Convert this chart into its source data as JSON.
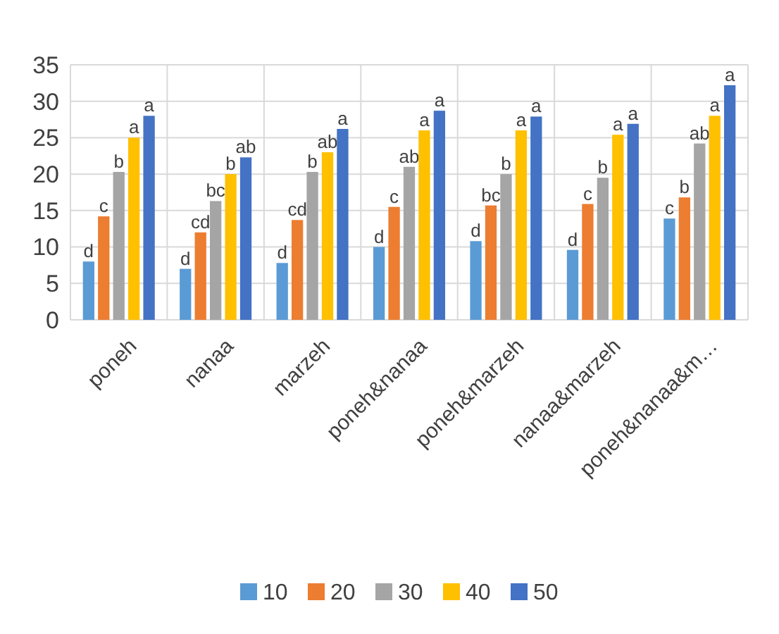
{
  "chart_data": {
    "type": "bar",
    "categories": [
      "poneh",
      "nanaa",
      "marzeh",
      "poneh&nanaa",
      "poneh&marzeh",
      "nanaa&marzeh",
      "poneh&nanaa&m…"
    ],
    "series": [
      {
        "name": "10",
        "color": "#5b9bd5",
        "values": [
          8,
          7,
          7.8,
          10,
          10.8,
          9.6,
          13.9
        ],
        "value_labels": [
          "d",
          "d",
          "d",
          "d",
          "d",
          "d",
          "c"
        ]
      },
      {
        "name": "20",
        "color": "#ed7d31",
        "values": [
          14.2,
          12,
          13.7,
          15.5,
          15.7,
          15.9,
          16.8
        ],
        "value_labels": [
          "c",
          "cd",
          "cd",
          "c",
          "bc",
          "c",
          "b"
        ]
      },
      {
        "name": "30",
        "color": "#a5a5a5",
        "values": [
          20.3,
          16.3,
          20.3,
          21,
          20,
          19.5,
          24.2
        ],
        "value_labels": [
          "b",
          "bc",
          "b",
          "ab",
          "b",
          "b",
          "ab"
        ]
      },
      {
        "name": "40",
        "color": "#ffc000",
        "values": [
          25,
          20,
          23,
          26,
          26,
          25.4,
          28
        ],
        "value_labels": [
          "a",
          "b",
          "ab",
          "a",
          "a",
          "a",
          "a"
        ]
      },
      {
        "name": "50",
        "color": "#4472c4",
        "values": [
          28,
          22.3,
          26.2,
          28.7,
          27.9,
          26.9,
          32.2
        ],
        "value_labels": [
          "a",
          "ab",
          "a",
          "a",
          "a",
          "a",
          "a"
        ]
      }
    ],
    "ylim": [
      0,
      35
    ],
    "yticks": [
      0,
      5,
      10,
      15,
      20,
      25,
      30,
      35
    ],
    "grid": true,
    "legend": "bottom"
  }
}
